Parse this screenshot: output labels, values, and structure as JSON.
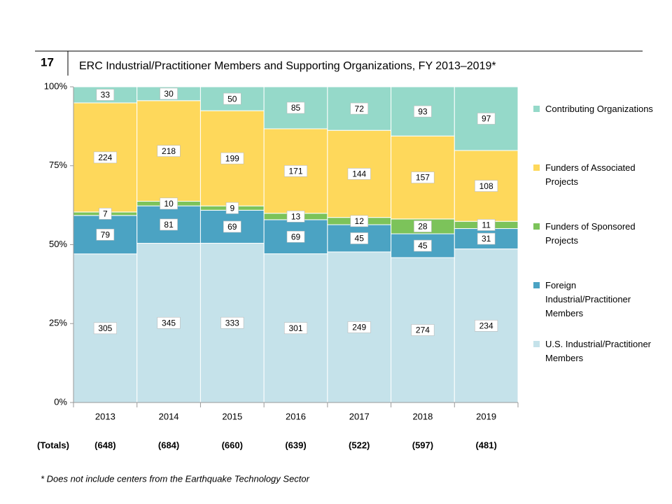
{
  "chart_data": {
    "type": "stacked_percent_bar",
    "figure_number": "17",
    "title": "ERC Industrial/Practitioner Members and Supporting Organizations, FY 2013–2019*",
    "categories": [
      "2013",
      "2014",
      "2015",
      "2016",
      "2017",
      "2018",
      "2019"
    ],
    "series": [
      {
        "name": "U.S. Industrial/Practitioner Members",
        "color": "#c5e2ea",
        "values": [
          305,
          345,
          333,
          301,
          249,
          274,
          234
        ]
      },
      {
        "name": "Foreign Industrial/Practitioner Members",
        "color": "#4ba3c3",
        "values": [
          79,
          81,
          69,
          69,
          45,
          45,
          31
        ]
      },
      {
        "name": "Funders of Sponsored Projects",
        "color": "#7cc35a",
        "values": [
          7,
          10,
          9,
          13,
          12,
          28,
          11
        ]
      },
      {
        "name": "Funders of Associated Projects",
        "color": "#fed85b",
        "values": [
          224,
          218,
          199,
          171,
          144,
          157,
          108
        ]
      },
      {
        "name": "Contributing Organizations",
        "color": "#95d9c9",
        "values": [
          33,
          30,
          50,
          85,
          72,
          93,
          97
        ]
      }
    ],
    "ylim": [
      0,
      100
    ],
    "yticks": [
      {
        "value": 0,
        "label": "0%"
      },
      {
        "value": 25,
        "label": "25%"
      },
      {
        "value": 50,
        "label": "50%"
      },
      {
        "value": 75,
        "label": "75%"
      },
      {
        "value": 100,
        "label": "100%"
      }
    ],
    "totals_label": "(Totals)",
    "totals": [
      "(648)",
      "(684)",
      "(660)",
      "(639)",
      "(522)",
      "(597)",
      "(481)"
    ],
    "footnote": "* Does not include centers from the Earthquake Technology Sector",
    "legend": "right",
    "grid": false
  }
}
